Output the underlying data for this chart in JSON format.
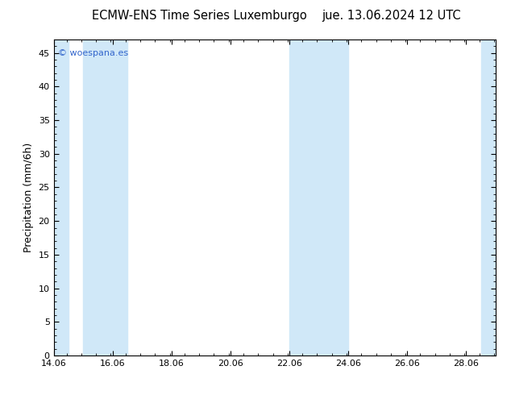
{
  "title_left": "ECMW-ENS Time Series Luxemburgo",
  "title_right": "jue. 13.06.2024 12 UTC",
  "ylabel": "Precipitation (mm/6h)",
  "watermark": "© woespana.es",
  "xlim": [
    14.06,
    29.06
  ],
  "ylim": [
    0,
    47.0
  ],
  "yticks": [
    0,
    5,
    10,
    15,
    20,
    25,
    30,
    35,
    40,
    45
  ],
  "xticks": [
    14.06,
    16.06,
    18.06,
    20.06,
    22.06,
    24.06,
    26.06,
    28.06
  ],
  "xtick_labels": [
    "14.06",
    "16.06",
    "18.06",
    "20.06",
    "22.06",
    "24.06",
    "26.06",
    "28.06"
  ],
  "shaded_regions": [
    [
      14.06,
      14.56
    ],
    [
      15.06,
      16.56
    ],
    [
      22.06,
      24.06
    ],
    [
      28.56,
      29.06
    ]
  ],
  "shade_color": "#d0e8f8",
  "background_color": "#ffffff",
  "plot_bg_color": "#ffffff",
  "title_fontsize": 10.5,
  "watermark_color": "#3366cc",
  "watermark_fontsize": 8,
  "tick_label_fontsize": 8,
  "ylabel_fontsize": 9
}
